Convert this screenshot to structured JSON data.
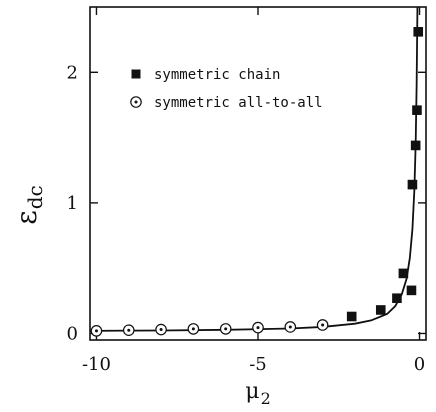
{
  "chart_data": {
    "type": "scatter",
    "xlabel": {
      "base": "μ",
      "sub": "2"
    },
    "ylabel": {
      "base": "ε",
      "sub": "dc"
    },
    "xlim": [
      -10.2,
      0.2
    ],
    "ylim": [
      -0.05,
      2.5
    ],
    "xticks": [
      {
        "value": -10,
        "label": "-10"
      },
      {
        "value": -5,
        "label": "-5"
      },
      {
        "value": 0,
        "label": "0"
      }
    ],
    "yticks": [
      {
        "value": 0,
        "label": "0"
      },
      {
        "value": 1,
        "label": "1"
      },
      {
        "value": 2,
        "label": "2"
      }
    ],
    "grid": false,
    "legend_position": "top-left",
    "series": [
      {
        "name": "symmetric chain",
        "marker": "filled-square",
        "color": "#111111",
        "points": [
          {
            "x": -2.1,
            "y": 0.13
          },
          {
            "x": -1.2,
            "y": 0.18
          },
          {
            "x": -0.7,
            "y": 0.27
          },
          {
            "x": -0.5,
            "y": 0.46
          },
          {
            "x": -0.25,
            "y": 0.33
          },
          {
            "x": -0.22,
            "y": 1.14
          },
          {
            "x": -0.12,
            "y": 1.44
          },
          {
            "x": -0.08,
            "y": 1.71
          },
          {
            "x": -0.04,
            "y": 2.31
          }
        ]
      },
      {
        "name": "symmetric all-to-all",
        "marker": "dotted-circle",
        "color": "#111111",
        "points": [
          {
            "x": -10,
            "y": 0.02
          },
          {
            "x": -9,
            "y": 0.025
          },
          {
            "x": -8,
            "y": 0.03
          },
          {
            "x": -7,
            "y": 0.035
          },
          {
            "x": -6,
            "y": 0.035
          },
          {
            "x": -5,
            "y": 0.045
          },
          {
            "x": -4,
            "y": 0.05
          },
          {
            "x": -3,
            "y": 0.065
          }
        ]
      },
      {
        "name": "",
        "type": "line",
        "color": "#111111",
        "points": [
          {
            "x": -10.2,
            "y": 0.02
          },
          {
            "x": -8.0,
            "y": 0.023
          },
          {
            "x": -6.0,
            "y": 0.028
          },
          {
            "x": -4.0,
            "y": 0.038
          },
          {
            "x": -3.0,
            "y": 0.05
          },
          {
            "x": -2.0,
            "y": 0.075
          },
          {
            "x": -1.5,
            "y": 0.1
          },
          {
            "x": -1.0,
            "y": 0.15
          },
          {
            "x": -0.75,
            "y": 0.21
          },
          {
            "x": -0.55,
            "y": 0.3
          },
          {
            "x": -0.4,
            "y": 0.42
          },
          {
            "x": -0.3,
            "y": 0.58
          },
          {
            "x": -0.22,
            "y": 0.8
          },
          {
            "x": -0.16,
            "y": 1.1
          },
          {
            "x": -0.12,
            "y": 1.45
          },
          {
            "x": -0.09,
            "y": 1.9
          },
          {
            "x": -0.065,
            "y": 2.5
          }
        ]
      }
    ]
  }
}
